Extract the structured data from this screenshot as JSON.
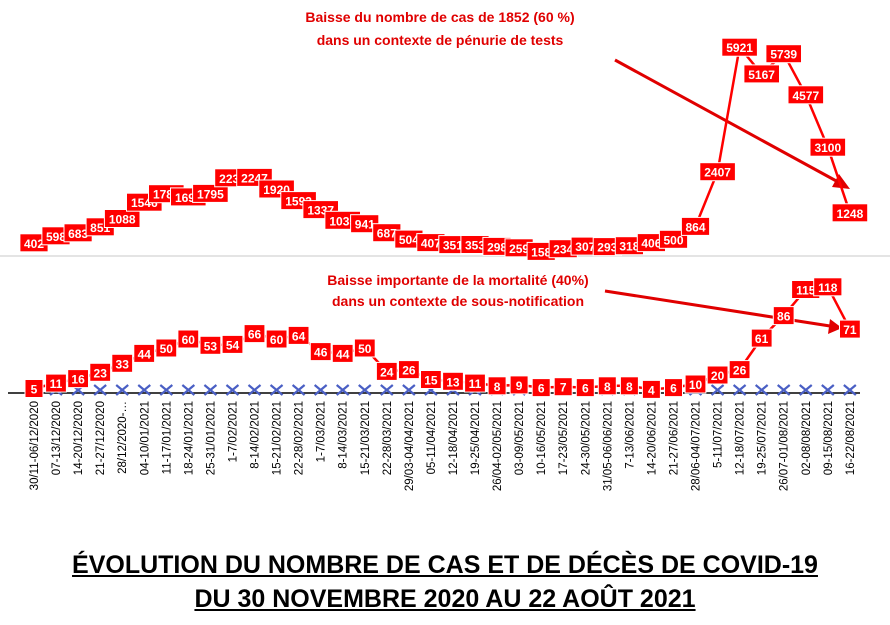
{
  "chart_data": [
    {
      "type": "line",
      "series": [
        {
          "name": "",
          "values": [
            402,
            598,
            683,
            851,
            1088,
            1546,
            1788,
            1696,
            1795,
            2236,
            2247,
            1920,
            1593,
            1337,
            1035,
            941,
            687,
            504,
            407,
            351,
            353,
            298,
            259,
            158,
            234,
            307,
            293,
            318,
            406,
            500,
            864,
            2407,
            5921,
            5167,
            5739,
            4577,
            3100,
            1248
          ]
        }
      ],
      "data_labels": [
        "402",
        "598",
        "683",
        "851",
        "1088",
        "1546",
        "1788",
        "1696",
        "1795",
        "2236",
        "2247",
        "1920",
        "1593",
        "1337",
        "1035",
        "941",
        "687",
        "504",
        "407",
        "351",
        "353",
        "298",
        "259",
        "158",
        "234",
        "307",
        "293",
        "318",
        "406",
        "500",
        "864",
        "2407",
        "5921",
        "5167",
        "5739",
        "4577",
        "3100",
        "1248"
      ],
      "annotation": [
        "Baisse du nombre de cas  de 1852 (60 %)",
        "dans un contexte de pénurie de tests"
      ],
      "colors": {
        "line": "#ff0000",
        "label_bg": "#ff0000",
        "label_text": "#ffffff",
        "annotation": "#e00000"
      }
    },
    {
      "type": "line",
      "categories": [
        "30/11-06/12/2020",
        "07-13/12/2020",
        "14-20/12/2020",
        "21-27/12/2020",
        "28/12/2020-…",
        "04-10/01/2021",
        "11-17/01/2021",
        "18-24/01/2021",
        "25-31/01/2021",
        "1-7/02/2021",
        "8-14/02/2021",
        "15-21/02/2021",
        "22-28/02/2021",
        "1-7/03/2021",
        "8-14/03/2021",
        "15-21/03/2021",
        "22-28/03/2021",
        "29/03-04/04/2021",
        "05-11/04/2021",
        "12-18/04/2021",
        "19-25/04/2021",
        "26/04-02/05/2021",
        "03-09/05/2021",
        "10-16/05/2021",
        "17-23/05/2021",
        "24-30/05/2021",
        "31/05-06/06/2021",
        "7-13/06/2021",
        "14-20/06/2021",
        "21-27/06/2021",
        "28/06-04/07/2021",
        "5-11/07/2021",
        "12-18/07/2021",
        "19-25/07/2021",
        "26/07-01/08/2021",
        "02-08/08/2021",
        "09-15/08/2021",
        "16-22/08/2021"
      ],
      "series": [
        {
          "name": "",
          "values": [
            5,
            11,
            16,
            23,
            33,
            44,
            50,
            60,
            53,
            54,
            66,
            60,
            64,
            46,
            44,
            50,
            24,
            26,
            15,
            13,
            11,
            8,
            9,
            6,
            7,
            6,
            8,
            8,
            4,
            6,
            10,
            20,
            26,
            61,
            86,
            115,
            118,
            71
          ]
        }
      ],
      "data_labels": [
        "5",
        "11",
        "16",
        "23",
        "33",
        "44",
        "50",
        "60",
        "53",
        "54",
        "66",
        "60",
        "64",
        "46",
        "44",
        "50",
        "24",
        "26",
        "15",
        "13",
        "11",
        "8",
        "9",
        "6",
        "7",
        "6",
        "8",
        "8",
        "4",
        "6",
        "10",
        "20",
        "26",
        "61",
        "86",
        "115",
        "118",
        "71"
      ],
      "annotation": [
        "Baisse importante de la  mortalité (40%)",
        "dans un contexte de sous-notification"
      ],
      "colors": {
        "line": "#ff0000",
        "label_bg": "#ff0000",
        "label_text": "#ffffff",
        "annotation": "#e00000",
        "baseline_markers": "#4a5fc4",
        "axis": "#000000"
      }
    }
  ],
  "title": {
    "line1": "ÉVOLUTION DU NOMBRE DE CAS ET DE DÉCÈS DE COVID-19",
    "line2": "DU 30 NOVEMBRE 2020 AU 22 AOÛT 2021"
  }
}
